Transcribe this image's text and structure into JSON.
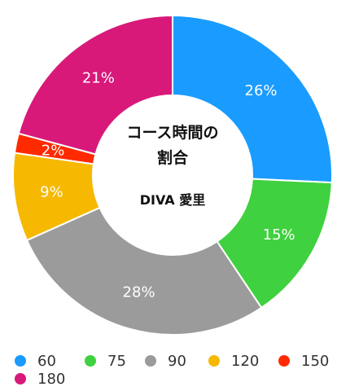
{
  "chart_data": {
    "type": "pie",
    "center_title_lines": [
      "コース時間の",
      "割合"
    ],
    "center_subtitle": "DIVA 愛里",
    "slices": [
      {
        "label": "60",
        "value": 26,
        "display": "26%",
        "color": "#1a9bff"
      },
      {
        "label": "75",
        "value": 15,
        "display": "15%",
        "color": "#3fd13f"
      },
      {
        "label": "90",
        "value": 28,
        "display": "28%",
        "color": "#9b9b9b"
      },
      {
        "label": "120",
        "value": 9,
        "display": "9%",
        "color": "#f6b800"
      },
      {
        "label": "150",
        "value": 2,
        "display": "2%",
        "color": "#ff2a00"
      },
      {
        "label": "180",
        "value": 21,
        "display": "21%",
        "color": "#d8197a"
      }
    ],
    "legend": {
      "position": "bottom"
    }
  }
}
